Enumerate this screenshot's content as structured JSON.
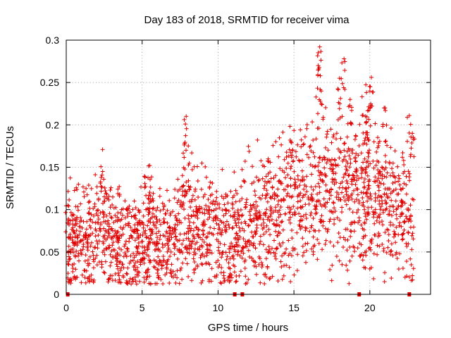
{
  "chart_data": {
    "type": "scatter",
    "title": "Day 183 of 2018, SRMTID for receiver vima",
    "xlabel": "GPS time / hours",
    "ylabel": "SRMTID / TECUs",
    "xlim": [
      0,
      24
    ],
    "ylim": [
      0,
      0.3
    ],
    "x_ticks": [
      0,
      5,
      10,
      15,
      20
    ],
    "x_tick_labels": [
      "0",
      "5",
      "10",
      "15",
      "20"
    ],
    "y_ticks": [
      0,
      0.05,
      0.1,
      0.15,
      0.2,
      0.25,
      0.3
    ],
    "y_tick_labels": [
      "0",
      "0.05",
      "0.1",
      "0.15",
      "0.2",
      "0.25",
      "0.3"
    ],
    "grid": true,
    "marker": "plus",
    "color": "#e00000",
    "series": [
      {
        "name": "SRMTID",
        "trend": [
          [
            0.0,
            0.065
          ],
          [
            1.0,
            0.062
          ],
          [
            2.0,
            0.068
          ],
          [
            2.5,
            0.09
          ],
          [
            3.0,
            0.065
          ],
          [
            4.0,
            0.06
          ],
          [
            5.0,
            0.062
          ],
          [
            5.5,
            0.08
          ],
          [
            6.0,
            0.055
          ],
          [
            7.0,
            0.06
          ],
          [
            7.8,
            0.09
          ],
          [
            8.5,
            0.08
          ],
          [
            9.5,
            0.075
          ],
          [
            10.5,
            0.07
          ],
          [
            11.0,
            0.068
          ],
          [
            12.0,
            0.085
          ],
          [
            13.0,
            0.09
          ],
          [
            14.0,
            0.1
          ],
          [
            15.0,
            0.11
          ],
          [
            16.0,
            0.115
          ],
          [
            17.0,
            0.12
          ],
          [
            18.0,
            0.13
          ],
          [
            19.0,
            0.12
          ],
          [
            20.0,
            0.125
          ],
          [
            21.0,
            0.11
          ],
          [
            22.0,
            0.1
          ],
          [
            22.8,
            0.08
          ]
        ],
        "peaks": [
          [
            0.1,
            0.105
          ],
          [
            2.4,
            0.145
          ],
          [
            5.5,
            0.152
          ],
          [
            7.9,
            0.21
          ],
          [
            7.8,
            0.178
          ],
          [
            14.8,
            0.18
          ],
          [
            16.7,
            0.292
          ],
          [
            16.6,
            0.27
          ],
          [
            16.8,
            0.24
          ],
          [
            18.0,
            0.255
          ],
          [
            18.3,
            0.278
          ],
          [
            18.7,
            0.23
          ],
          [
            19.7,
            0.21
          ],
          [
            20.1,
            0.256
          ],
          [
            20.0,
            0.24
          ],
          [
            21.0,
            0.22
          ],
          [
            22.6,
            0.211
          ],
          [
            22.8,
            0.19
          ]
        ],
        "lows": [
          [
            4.4,
            0.015
          ],
          [
            5.3,
            0.02
          ],
          [
            0.3,
            0.018
          ],
          [
            20.0,
            0.03
          ],
          [
            22.8,
            0.022
          ],
          [
            6.0,
            0.025
          ],
          [
            8.5,
            0.03
          ],
          [
            11.1,
            0.033
          ]
        ],
        "zero_points_x": [
          0.1,
          11.1,
          11.6,
          19.3,
          22.6
        ]
      }
    ]
  }
}
